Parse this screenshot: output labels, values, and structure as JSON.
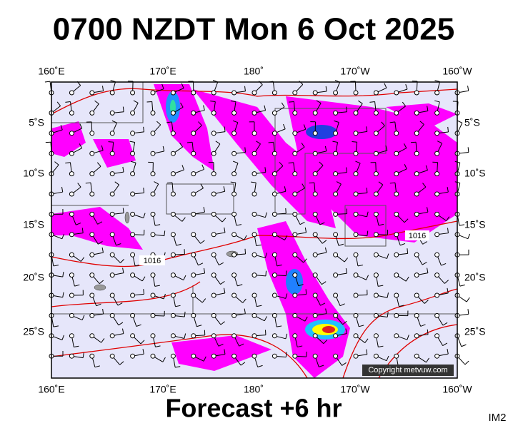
{
  "title": "0700 NZDT Mon 6 Oct 2025",
  "top_labels": [
    "160˚E",
    "170˚E",
    "180˚",
    "170˚W",
    "160˚W"
  ],
  "bottom_labels": [
    "160˚E",
    "170˚E",
    "180˚",
    "170˚W",
    "160˚W"
  ],
  "left_labels": [
    "5˚S",
    "10˚S",
    "15˚S",
    "20˚S",
    "25˚S"
  ],
  "right_labels": [
    "5˚S",
    "10˚S",
    "15˚S",
    "20˚S",
    "25˚S"
  ],
  "isobar_labels": [
    "1016",
    "1016"
  ],
  "copyright": "Copyright metvuw.com",
  "footer": "Forecast +6 hr",
  "corner_label": "IM2"
}
